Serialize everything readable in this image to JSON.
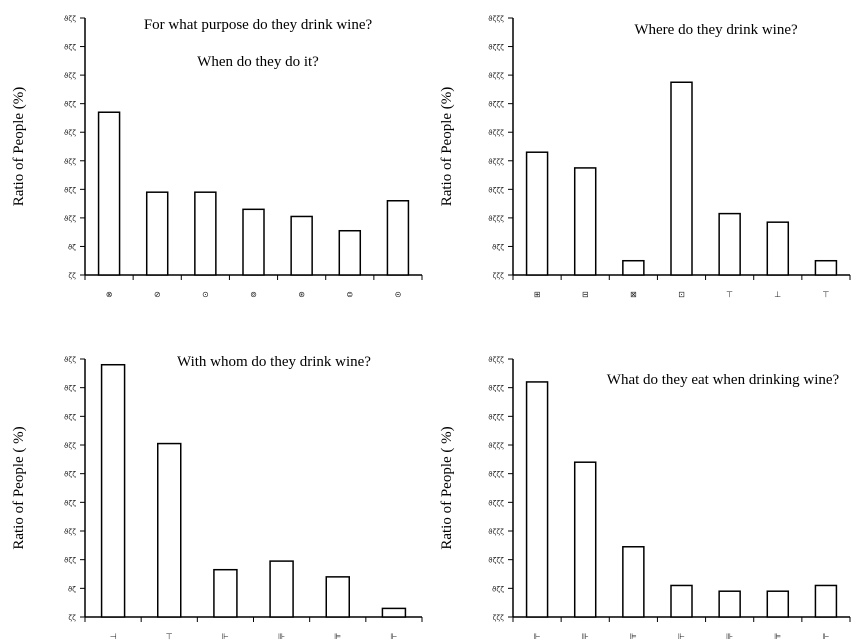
{
  "chart_data": [
    {
      "type": "bar",
      "title_lines": [
        "For what purpose do they drink wine?",
        "When do they do it?"
      ],
      "ylabel": "Ratio of People (%)",
      "yticks": [
        "ζζ",
        "ϑζ",
        "ϑζζ",
        "ϑζζ",
        "ϑζζ",
        "ϑζζ",
        "ϑζζ",
        "ϑζζ",
        "ϑζζ",
        "ϑζζ"
      ],
      "ylim": [
        0,
        90
      ],
      "categories": [
        "⊗",
        "⊘",
        "⊙",
        "⊚",
        "⊛",
        "⊜",
        "⊝"
      ],
      "values": [
        57,
        29,
        29,
        23,
        20.5,
        15.5,
        26
      ]
    },
    {
      "type": "bar",
      "title_lines": [
        "Where do they drink wine?"
      ],
      "ylabel": "Ratio of People (%)",
      "yticks": [
        "ζζζ",
        "ϑζζ",
        "ϑζζζ",
        "ϑζζζ",
        "ϑζζζ",
        "ϑζζζ",
        "ϑζζζ",
        "ϑζζζ",
        "ϑζζζ",
        "ϑζζζ"
      ],
      "ylim": [
        0,
        90
      ],
      "categories": [
        "⊞",
        "⊟",
        "⊠",
        "⊡",
        "⊤",
        "⊥",
        "⊤"
      ],
      "values": [
        43,
        37.5,
        5,
        67.5,
        21.5,
        18.5,
        5
      ]
    },
    {
      "type": "bar",
      "title_lines": [
        "With whom do they drink wine?"
      ],
      "ylabel": "Ratio of People ( %)",
      "yticks": [
        "ζζ",
        "ϑζ",
        "ϑζζ",
        "ϑζζ",
        "ϑζζ",
        "ϑζζ",
        "ϑζζ",
        "ϑζζ",
        "ϑζζ",
        "ϑζζ"
      ],
      "ylim": [
        0,
        90
      ],
      "categories": [
        "⊣",
        "⊤",
        "⊩",
        "⊪",
        "⊫",
        "⊩"
      ],
      "values": [
        88,
        60.5,
        16.5,
        19.5,
        14,
        3
      ]
    },
    {
      "type": "bar",
      "title_lines": [
        "What do they eat when drinking wine?"
      ],
      "ylabel": "Ratio of People ( %)",
      "yticks": [
        "ζζζ",
        "ϑζζ",
        "ϑζζζ",
        "ϑζζζ",
        "ϑζζζ",
        "ϑζζζ",
        "ϑζζζ",
        "ϑζζζ",
        "ϑζζζ",
        "ϑζζζ"
      ],
      "ylim": [
        0,
        90
      ],
      "categories": [
        "⊩",
        "⊪",
        "⊫",
        "⊩",
        "⊪",
        "⊫",
        "⊩"
      ],
      "values": [
        82,
        54,
        24.5,
        11,
        9,
        9,
        11
      ]
    }
  ]
}
